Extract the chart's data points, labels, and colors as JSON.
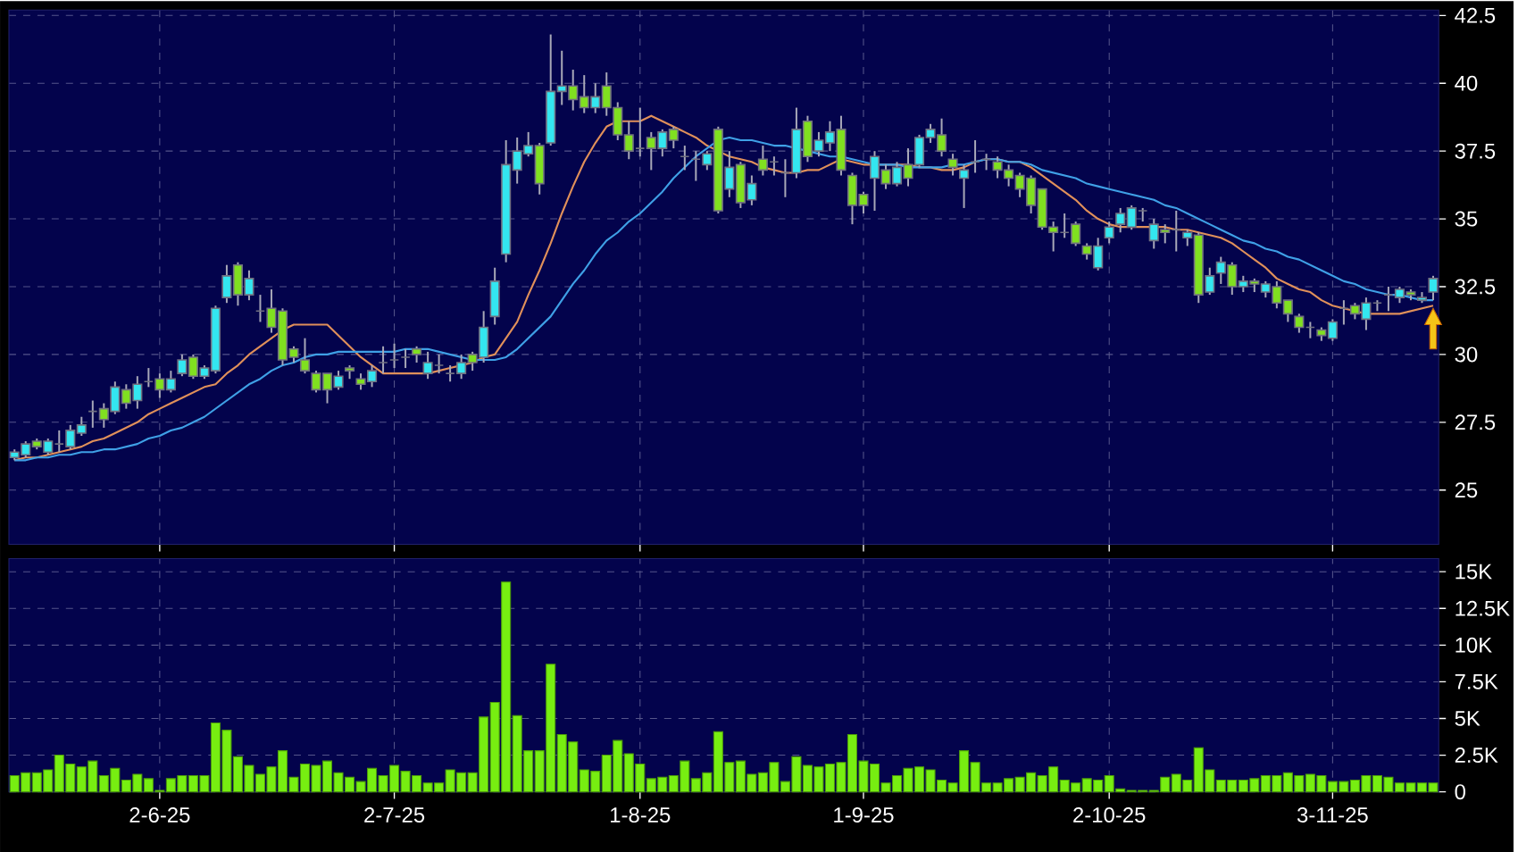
{
  "chart_data": [
    {
      "type": "candlestick",
      "categories": [
        null,
        null,
        null,
        null,
        null,
        null,
        null,
        null,
        null,
        null,
        null,
        null,
        null,
        null,
        null,
        null,
        null,
        null,
        null,
        null,
        null,
        null,
        null,
        null,
        null,
        null,
        null,
        null,
        null,
        null,
        null,
        null,
        null,
        null,
        null,
        null,
        null,
        null,
        null,
        null,
        null,
        null,
        null,
        null,
        null,
        null,
        null,
        null,
        null,
        null,
        null,
        null,
        null,
        null,
        null,
        null,
        null,
        null,
        null,
        null,
        null,
        null,
        null,
        null,
        null,
        null,
        null,
        null,
        null,
        null,
        null,
        null,
        null,
        null,
        null,
        null,
        null,
        null,
        null,
        null,
        null,
        null,
        null,
        null,
        null,
        null,
        null,
        null,
        null,
        null,
        null,
        null,
        null,
        null,
        null,
        null,
        null,
        null,
        null,
        null,
        null,
        null,
        null,
        null,
        null,
        null,
        null,
        null,
        null,
        null,
        null,
        null,
        null,
        null,
        null,
        null,
        null,
        null,
        null,
        null,
        null,
        null,
        null,
        null,
        null,
        null,
        null,
        null
      ],
      "ohlc": [
        [
          26.2,
          26.5,
          26.1,
          26.4
        ],
        [
          26.3,
          26.8,
          26.2,
          26.7
        ],
        [
          26.8,
          26.9,
          26.5,
          26.6
        ],
        [
          26.4,
          26.9,
          26.3,
          26.8
        ],
        [
          26.7,
          27.2,
          26.4,
          26.7
        ],
        [
          26.6,
          27.4,
          26.5,
          27.2
        ],
        [
          27.1,
          27.7,
          27.0,
          27.4
        ],
        [
          27.9,
          28.3,
          27.3,
          27.9
        ],
        [
          28.0,
          28.2,
          27.3,
          27.6
        ],
        [
          27.9,
          29.0,
          27.8,
          28.8
        ],
        [
          28.7,
          28.9,
          28.0,
          28.2
        ],
        [
          28.3,
          29.2,
          28.0,
          28.9
        ],
        [
          29.0,
          29.5,
          28.8,
          29.0
        ],
        [
          29.1,
          29.3,
          28.4,
          28.7
        ],
        [
          28.7,
          29.4,
          28.6,
          29.1
        ],
        [
          29.3,
          30.0,
          29.2,
          29.8
        ],
        [
          29.9,
          30.0,
          29.1,
          29.2
        ],
        [
          29.2,
          29.6,
          29.1,
          29.5
        ],
        [
          29.4,
          31.8,
          29.3,
          31.7
        ],
        [
          32.1,
          33.3,
          31.9,
          32.9
        ],
        [
          33.3,
          33.4,
          31.8,
          32.2
        ],
        [
          32.2,
          33.1,
          32.0,
          32.8
        ],
        [
          31.6,
          32.2,
          31.2,
          31.6
        ],
        [
          31.7,
          32.4,
          30.8,
          31.0
        ],
        [
          31.6,
          31.7,
          29.6,
          29.8
        ],
        [
          30.2,
          30.3,
          29.7,
          29.9
        ],
        [
          29.8,
          30.6,
          29.3,
          29.4
        ],
        [
          29.3,
          29.4,
          28.6,
          28.7
        ],
        [
          29.3,
          29.3,
          28.2,
          28.7
        ],
        [
          28.8,
          29.4,
          28.7,
          29.2
        ],
        [
          29.5,
          29.6,
          29.1,
          29.4
        ],
        [
          29.1,
          29.3,
          28.7,
          28.9
        ],
        [
          29.0,
          29.6,
          28.8,
          29.4
        ],
        [
          29.7,
          30.3,
          29.3,
          29.7
        ],
        [
          29.8,
          30.4,
          29.5,
          29.8
        ],
        [
          29.9,
          30.2,
          29.5,
          29.9
        ],
        [
          30.2,
          30.3,
          29.7,
          30.0
        ],
        [
          29.3,
          30.1,
          29.1,
          29.7
        ],
        [
          29.6,
          30.0,
          29.3,
          29.6
        ],
        [
          29.3,
          29.6,
          29.0,
          29.3
        ],
        [
          29.3,
          30.0,
          29.1,
          29.7
        ],
        [
          30.0,
          30.1,
          29.4,
          29.7
        ],
        [
          29.9,
          31.6,
          29.7,
          31.0
        ],
        [
          31.4,
          33.2,
          31.1,
          32.7
        ],
        [
          33.7,
          37.9,
          33.4,
          37.0
        ],
        [
          36.8,
          38.0,
          36.3,
          37.5
        ],
        [
          37.4,
          38.2,
          37.3,
          37.7
        ],
        [
          37.7,
          37.8,
          35.9,
          36.3
        ],
        [
          37.8,
          41.8,
          37.7,
          39.7
        ],
        [
          39.7,
          41.2,
          39.2,
          39.9
        ],
        [
          39.9,
          40.5,
          39.0,
          39.4
        ],
        [
          39.5,
          40.3,
          38.9,
          39.1
        ],
        [
          39.1,
          40.0,
          38.9,
          39.5
        ],
        [
          39.9,
          40.4,
          38.8,
          39.1
        ],
        [
          39.1,
          39.3,
          37.9,
          38.1
        ],
        [
          38.1,
          38.6,
          37.2,
          37.5
        ],
        [
          37.6,
          39.1,
          37.3,
          37.6
        ],
        [
          38.0,
          38.2,
          36.8,
          37.6
        ],
        [
          37.6,
          38.3,
          37.3,
          38.2
        ],
        [
          38.3,
          38.4,
          37.6,
          37.9
        ],
        [
          37.3,
          37.7,
          36.8,
          37.3
        ],
        [
          37.2,
          37.5,
          36.4,
          37.2
        ],
        [
          37.0,
          37.5,
          36.8,
          37.4
        ],
        [
          38.3,
          38.4,
          35.2,
          35.3
        ],
        [
          36.1,
          37.5,
          35.8,
          36.9
        ],
        [
          37.0,
          37.1,
          35.4,
          35.6
        ],
        [
          35.7,
          36.6,
          35.5,
          36.3
        ],
        [
          37.2,
          37.7,
          36.6,
          36.8
        ],
        [
          37.1,
          37.3,
          36.6,
          37.1
        ],
        [
          36.7,
          37.2,
          35.8,
          36.7
        ],
        [
          36.7,
          39.1,
          36.5,
          38.3
        ],
        [
          38.6,
          38.8,
          37.1,
          37.3
        ],
        [
          37.5,
          38.2,
          37.3,
          37.9
        ],
        [
          37.8,
          38.6,
          37.5,
          38.2
        ],
        [
          38.3,
          38.8,
          36.6,
          36.8
        ],
        [
          36.6,
          36.7,
          34.8,
          35.5
        ],
        [
          35.9,
          36.0,
          35.2,
          35.5
        ],
        [
          36.5,
          37.5,
          35.3,
          37.3
        ],
        [
          36.8,
          37.0,
          36.1,
          36.3
        ],
        [
          36.3,
          37.1,
          36.2,
          36.9
        ],
        [
          37.0,
          37.6,
          36.2,
          36.5
        ],
        [
          37.0,
          38.1,
          36.9,
          38.0
        ],
        [
          38.0,
          38.5,
          37.8,
          38.3
        ],
        [
          38.1,
          38.7,
          37.3,
          37.5
        ],
        [
          37.2,
          37.4,
          36.6,
          36.9
        ],
        [
          36.5,
          37.0,
          35.4,
          36.8
        ],
        [
          37.1,
          37.9,
          36.7,
          37.1
        ],
        [
          37.2,
          37.4,
          36.8,
          37.2
        ],
        [
          37.1,
          37.3,
          36.5,
          36.8
        ],
        [
          36.8,
          37.0,
          36.2,
          36.5
        ],
        [
          36.6,
          36.7,
          35.8,
          36.1
        ],
        [
          36.5,
          36.6,
          35.2,
          35.5
        ],
        [
          36.1,
          36.1,
          34.6,
          34.7
        ],
        [
          34.7,
          34.9,
          33.8,
          34.5
        ],
        [
          34.5,
          35.2,
          34.3,
          34.5
        ],
        [
          34.8,
          34.9,
          34.0,
          34.1
        ],
        [
          34.0,
          34.1,
          33.5,
          33.7
        ],
        [
          33.2,
          34.3,
          33.1,
          34.0
        ],
        [
          34.3,
          34.9,
          34.1,
          34.7
        ],
        [
          34.8,
          35.4,
          34.5,
          35.2
        ],
        [
          34.7,
          35.5,
          34.6,
          35.4
        ],
        [
          35.3,
          35.4,
          34.9,
          35.3
        ],
        [
          34.2,
          35.0,
          33.9,
          34.8
        ],
        [
          34.6,
          34.8,
          34.1,
          34.5
        ],
        [
          34.6,
          35.3,
          33.8,
          34.6
        ],
        [
          34.3,
          34.6,
          34.0,
          34.5
        ],
        [
          34.4,
          34.5,
          31.9,
          32.2
        ],
        [
          32.3,
          33.2,
          32.2,
          32.9
        ],
        [
          33.0,
          33.6,
          32.6,
          33.4
        ],
        [
          33.3,
          33.4,
          32.2,
          32.5
        ],
        [
          32.5,
          32.9,
          32.3,
          32.7
        ],
        [
          32.7,
          32.8,
          32.3,
          32.6
        ],
        [
          32.3,
          32.7,
          32.1,
          32.6
        ],
        [
          32.5,
          32.7,
          31.7,
          31.9
        ],
        [
          32.0,
          32.0,
          31.2,
          31.5
        ],
        [
          31.4,
          31.5,
          30.8,
          31.0
        ],
        [
          31.0,
          31.2,
          30.6,
          31.0
        ],
        [
          30.9,
          31.0,
          30.5,
          30.7
        ],
        [
          30.6,
          31.3,
          30.5,
          31.2
        ],
        [
          31.7,
          32.0,
          31.1,
          31.7
        ],
        [
          31.8,
          31.9,
          31.3,
          31.5
        ],
        [
          31.3,
          32.1,
          30.9,
          31.9
        ],
        [
          31.9,
          32.0,
          31.6,
          31.9
        ],
        [
          32.2,
          32.5,
          31.6,
          32.2
        ],
        [
          32.1,
          32.5,
          31.9,
          32.4
        ],
        [
          32.3,
          32.4,
          32.0,
          32.2
        ],
        [
          32.0,
          32.3,
          31.9,
          32.1
        ],
        [
          32.3,
          32.9,
          32.0,
          32.8
        ]
      ],
      "series": [
        {
          "type": "line",
          "color": "#e0905a",
          "values": [
            26.1,
            26.2,
            26.2,
            26.3,
            26.4,
            26.5,
            26.6,
            26.8,
            26.9,
            27.1,
            27.3,
            27.5,
            27.8,
            28.0,
            28.2,
            28.4,
            28.6,
            28.8,
            28.9,
            29.3,
            29.6,
            30.0,
            30.3,
            30.6,
            30.9,
            31.1,
            31.1,
            31.1,
            31.1,
            30.7,
            30.3,
            29.9,
            29.6,
            29.3,
            29.3,
            29.3,
            29.3,
            29.3,
            29.4,
            29.5,
            29.6,
            29.7,
            29.9,
            30.0,
            30.6,
            31.2,
            32.2,
            33.1,
            34.1,
            35.2,
            36.2,
            37.1,
            37.8,
            38.4,
            38.6,
            38.6,
            38.6,
            38.8,
            38.6,
            38.4,
            38.2,
            38.0,
            37.7,
            37.5,
            37.3,
            37.2,
            37.1,
            36.9,
            36.8,
            36.7,
            36.7,
            36.8,
            36.8,
            37.0,
            37.2,
            37.1,
            37.0,
            37.0,
            37.0,
            37.0,
            37.0,
            36.9,
            36.9,
            36.8,
            36.8,
            36.9,
            37.1,
            37.2,
            37.2,
            37.1,
            37.1,
            36.9,
            36.6,
            36.3,
            36.0,
            35.7,
            35.3,
            35.0,
            34.8,
            34.7,
            34.7,
            34.7,
            34.7,
            34.7,
            34.6,
            34.6,
            34.5,
            34.4,
            34.3,
            34.1,
            33.8,
            33.5,
            33.2,
            32.8,
            32.6,
            32.4,
            32.3,
            32.0,
            31.8,
            31.7,
            31.6,
            31.5,
            31.5,
            31.5,
            31.5,
            31.6,
            31.7,
            31.8
          ]
        },
        {
          "type": "line",
          "color": "#3fa0e6",
          "values": [
            26.1,
            26.1,
            26.2,
            26.2,
            26.3,
            26.3,
            26.4,
            26.4,
            26.5,
            26.5,
            26.6,
            26.7,
            26.9,
            27.0,
            27.2,
            27.3,
            27.5,
            27.7,
            28.0,
            28.3,
            28.6,
            28.9,
            29.1,
            29.4,
            29.6,
            29.7,
            29.9,
            30.0,
            30.0,
            30.1,
            30.1,
            30.1,
            30.1,
            30.1,
            30.1,
            30.2,
            30.2,
            30.2,
            30.1,
            30.0,
            29.9,
            29.8,
            29.8,
            29.8,
            29.9,
            30.2,
            30.6,
            31.0,
            31.4,
            32.0,
            32.6,
            33.1,
            33.7,
            34.2,
            34.5,
            34.9,
            35.2,
            35.6,
            36.0,
            36.5,
            36.9,
            37.3,
            37.6,
            37.9,
            38.0,
            37.9,
            37.9,
            37.8,
            37.7,
            37.7,
            37.6,
            37.5,
            37.4,
            37.3,
            37.3,
            37.2,
            37.1,
            37.0,
            37.0,
            37.0,
            36.9,
            36.9,
            36.9,
            36.9,
            37.0,
            37.0,
            37.1,
            37.2,
            37.2,
            37.1,
            37.1,
            37.0,
            36.8,
            36.7,
            36.6,
            36.5,
            36.3,
            36.2,
            36.1,
            36.0,
            35.9,
            35.8,
            35.7,
            35.5,
            35.4,
            35.2,
            35.0,
            34.8,
            34.6,
            34.4,
            34.2,
            34.1,
            33.9,
            33.8,
            33.6,
            33.5,
            33.3,
            33.1,
            32.9,
            32.7,
            32.6,
            32.4,
            32.3,
            32.2,
            32.2,
            32.1,
            32.0,
            32.0
          ]
        }
      ],
      "ylim": [
        23,
        42.7
      ],
      "yticks": [
        25,
        27.5,
        30,
        32.5,
        35,
        37.5,
        40,
        42.5
      ],
      "grid": true,
      "tick_labels": "y"
    },
    {
      "type": "bar",
      "categories": [
        null,
        null,
        null,
        null,
        null,
        null,
        null,
        null,
        null,
        null,
        null,
        null,
        null,
        "2-6-25",
        null,
        null,
        null,
        null,
        null,
        null,
        null,
        null,
        null,
        null,
        null,
        null,
        null,
        null,
        null,
        null,
        null,
        null,
        null,
        null,
        "2-7-25",
        null,
        null,
        null,
        null,
        null,
        null,
        null,
        null,
        null,
        null,
        null,
        null,
        null,
        null,
        null,
        null,
        null,
        null,
        null,
        null,
        null,
        "1-8-25",
        null,
        null,
        null,
        null,
        null,
        null,
        null,
        null,
        null,
        null,
        null,
        null,
        null,
        null,
        null,
        null,
        null,
        null,
        null,
        "1-9-25",
        null,
        null,
        null,
        null,
        null,
        null,
        null,
        null,
        null,
        null,
        null,
        null,
        null,
        null,
        null,
        null,
        null,
        null,
        null,
        null,
        null,
        "2-10-25",
        null,
        null,
        null,
        null,
        null,
        null,
        null,
        null,
        null,
        null,
        null,
        null,
        null,
        null,
        null,
        null,
        null,
        null,
        null,
        "3-11-25",
        null,
        null,
        null,
        null,
        null,
        null,
        null,
        null,
        null
      ],
      "values": [
        1100,
        1300,
        1300,
        1500,
        2500,
        1900,
        1700,
        2100,
        1100,
        1600,
        800,
        1200,
        900,
        100,
        900,
        1100,
        1100,
        1100,
        4700,
        4200,
        2400,
        1800,
        1200,
        1700,
        2800,
        1000,
        1900,
        1800,
        2100,
        1300,
        1000,
        700,
        1600,
        1100,
        1800,
        1400,
        1100,
        600,
        600,
        1500,
        1300,
        1300,
        5100,
        6100,
        14300,
        5200,
        2800,
        2800,
        8700,
        3900,
        3400,
        1500,
        1400,
        2500,
        3500,
        2600,
        1900,
        900,
        1000,
        1100,
        2100,
        900,
        1300,
        4100,
        2000,
        2100,
        1200,
        1300,
        2000,
        700,
        2400,
        1800,
        1700,
        1900,
        2000,
        3900,
        2100,
        1900,
        600,
        1100,
        1600,
        1700,
        1500,
        800,
        600,
        2800,
        2000,
        600,
        600,
        900,
        1000,
        1300,
        1100,
        1700,
        800,
        600,
        900,
        800,
        1100,
        200,
        100,
        100,
        100,
        1000,
        1200,
        800,
        3000,
        1500,
        800,
        800,
        800,
        900,
        1100,
        1100,
        1300,
        1100,
        1200,
        1100,
        700,
        700,
        800,
        1100,
        1100,
        1000,
        600,
        600,
        600,
        600
      ],
      "color": "#77ee11",
      "ylim": [
        0,
        15900
      ],
      "yticks": [
        0,
        {
          "value": 2500,
          "label": "2.5K"
        },
        {
          "value": 5000,
          "label": "5K"
        },
        {
          "value": 7500,
          "label": "7.5K"
        },
        {
          "value": 10000,
          "label": "10K"
        },
        {
          "value": 12500,
          "label": "12.5K"
        },
        {
          "value": 15000,
          "label": "15K"
        }
      ],
      "grid": true
    }
  ]
}
